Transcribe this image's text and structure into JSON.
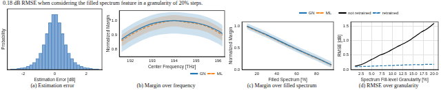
{
  "header_text": "0.18 dB RMSE when considering the filled spectrum feature in a granularity of 20% steps.",
  "chart_data": [
    {
      "type": "histogram",
      "caption": "(a) Estimation error",
      "x_label": "Estimation Error [dB]",
      "y_label": "Probability",
      "bins": [
        -3.0,
        -2.8,
        -2.6,
        -2.4,
        -2.2,
        -2.0,
        -1.8,
        -1.6,
        -1.4,
        -1.2,
        -1.0,
        -0.8,
        -0.6,
        -0.4,
        -0.2,
        0.0,
        0.2,
        0.4,
        0.6,
        0.8,
        1.0,
        1.2,
        1.4,
        1.6,
        1.8,
        2.0,
        2.2,
        2.4,
        2.6,
        2.8,
        3.0
      ],
      "values": [
        0.0,
        0.001,
        0.001,
        0.002,
        0.003,
        0.004,
        0.006,
        0.009,
        0.013,
        0.02,
        0.03,
        0.045,
        0.065,
        0.085,
        0.1,
        0.1,
        0.085,
        0.065,
        0.045,
        0.03,
        0.02,
        0.013,
        0.009,
        0.006,
        0.004,
        0.003,
        0.002,
        0.001,
        0.001,
        0.0
      ],
      "color": "#5b8fc7",
      "xlim": [
        -3,
        3
      ],
      "xticks": [
        -2,
        0,
        2
      ],
      "ylim": [
        0,
        0.11
      ],
      "tick_labels": "x",
      "grid": false
    },
    {
      "type": "line",
      "caption": "(b) Margin over frequency",
      "x_label": "Center Frequency [THz]",
      "y_label": "Normalized Margin",
      "x": [
        191.6,
        192.0,
        192.5,
        193.0,
        193.5,
        194.0,
        194.5,
        195.0,
        195.5,
        196.0,
        196.2
      ],
      "series": [
        {
          "name": "GN",
          "color": "#1f77b4",
          "line_style": "solid",
          "values": [
            0.87,
            0.91,
            0.95,
            0.98,
            0.995,
            1.0,
            0.995,
            0.985,
            0.965,
            0.93,
            0.91
          ],
          "lower": [
            0.78,
            0.82,
            0.86,
            0.89,
            0.905,
            0.91,
            0.905,
            0.895,
            0.875,
            0.84,
            0.82
          ],
          "upper": [
            0.93,
            0.97,
            1.01,
            1.04,
            1.055,
            1.06,
            1.055,
            1.045,
            1.025,
            0.99,
            0.97
          ]
        },
        {
          "name": "ML",
          "color": "#ff7f0e",
          "line_style": "dashed",
          "values": [
            0.86,
            0.9,
            0.94,
            0.97,
            0.99,
            1.0,
            0.99,
            0.98,
            0.96,
            0.92,
            0.9
          ],
          "lower": [
            0.82,
            0.86,
            0.9,
            0.93,
            0.95,
            0.96,
            0.95,
            0.94,
            0.92,
            0.88,
            0.86
          ],
          "upper": [
            0.9,
            0.94,
            0.98,
            1.01,
            1.03,
            1.04,
            1.03,
            1.02,
            1.0,
            0.96,
            0.94
          ]
        }
      ],
      "xlim": [
        191.5,
        196.3
      ],
      "xticks": [
        192,
        193,
        194,
        195,
        196
      ],
      "ylim": [
        0.75,
        1.07
      ],
      "yticks": [
        0.8,
        0.9,
        {
          "value": 1.0,
          "label": "1.0"
        }
      ],
      "legend": "lower right",
      "grid": false
    },
    {
      "type": "line",
      "caption": "(c) Margin over filled spectrum",
      "x_label": "Filled Spectrum [%]",
      "y_label": "Normalized Margin",
      "x": [
        10,
        20,
        30,
        40,
        50,
        60,
        70,
        80,
        90,
        95
      ],
      "series": [
        {
          "name": "GN",
          "color": "#1f77b4",
          "line_style": "solid",
          "values": [
            1.0,
            0.9,
            0.8,
            0.69,
            0.58,
            0.47,
            0.37,
            0.27,
            0.16,
            0.11
          ],
          "lower": [
            0.93,
            0.83,
            0.73,
            0.62,
            0.51,
            0.4,
            0.3,
            0.2,
            0.09,
            0.04
          ],
          "upper": [
            1.07,
            0.97,
            0.87,
            0.76,
            0.65,
            0.54,
            0.44,
            0.34,
            0.23,
            0.18
          ]
        },
        {
          "name": "ML",
          "color": "#ff7f0e",
          "line_style": "dashed",
          "values": [
            0.99,
            0.89,
            0.79,
            0.68,
            0.57,
            0.47,
            0.36,
            0.26,
            0.16,
            0.1
          ],
          "lower": [
            0.96,
            0.86,
            0.76,
            0.65,
            0.54,
            0.44,
            0.33,
            0.23,
            0.13,
            0.07
          ],
          "upper": [
            1.02,
            0.92,
            0.82,
            0.71,
            0.6,
            0.5,
            0.39,
            0.29,
            0.19,
            0.13
          ]
        }
      ],
      "xlim": [
        5,
        97
      ],
      "xticks": [
        20,
        40,
        60,
        80
      ],
      "ylim": [
        0,
        1.1
      ],
      "yticks": [
        {
          "value": 0,
          "label": "0.0"
        },
        0.5,
        {
          "value": 1.0,
          "label": "1.0"
        }
      ],
      "legend": "upper right",
      "grid": false
    },
    {
      "type": "line",
      "caption": "(d) RMSE over granularity",
      "x_label": "Spectrum Fill-level Granularity [%]",
      "y_label": "RMSE [dB]",
      "x": [
        1,
        2,
        3,
        4,
        5,
        6,
        7,
        8,
        9,
        10,
        11,
        12,
        13,
        14,
        15,
        16,
        17,
        18,
        19,
        20
      ],
      "series": [
        {
          "name": "not retrained",
          "color": "#000000",
          "line_style": "solid",
          "values": [
            0.12,
            0.15,
            0.2,
            0.27,
            0.35,
            0.42,
            0.5,
            0.55,
            0.62,
            0.7,
            0.78,
            0.85,
            0.92,
            1.0,
            1.1,
            1.2,
            1.3,
            1.38,
            1.48,
            1.6
          ]
        },
        {
          "name": "retrained",
          "color": "#1f77b4",
          "line_style": "dashed",
          "values": [
            0.1,
            0.1,
            0.11,
            0.11,
            0.12,
            0.12,
            0.13,
            0.13,
            0.14,
            0.14,
            0.15,
            0.15,
            0.16,
            0.16,
            0.17,
            0.17,
            0.17,
            0.18,
            0.18,
            0.18
          ]
        }
      ],
      "xlim": [
        0,
        21
      ],
      "xticks": [
        2.5,
        {
          "value": 5,
          "label": "5.0"
        },
        7.5,
        {
          "value": 10,
          "label": "10.0"
        },
        12.5,
        {
          "value": 15,
          "label": "15.0"
        },
        17.5,
        {
          "value": 20,
          "label": "20.0"
        }
      ],
      "ylim": [
        0,
        1.65
      ],
      "yticks": [
        {
          "value": 0,
          "label": "0.0"
        },
        0.5,
        {
          "value": 1,
          "label": "1.0"
        },
        1.5
      ],
      "legend": "upper left",
      "grid": true
    }
  ]
}
